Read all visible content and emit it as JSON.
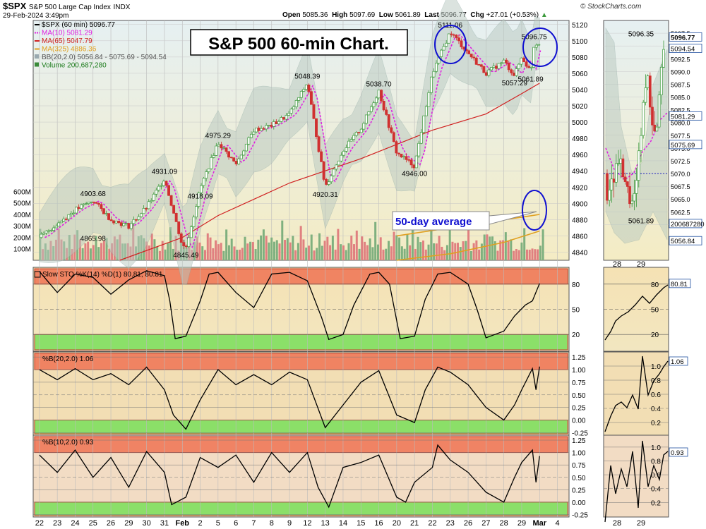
{
  "header": {
    "symbol": "$SPX",
    "name": "S&P 500 Large Cap Index",
    "exchange": "INDX",
    "datetime": "29-Feb-2024 3:49pm",
    "open_label": "Open",
    "open": "5085.36",
    "high_label": "High",
    "high": "5097.69",
    "low_label": "Low",
    "low": "5061.89",
    "last_label": "Last",
    "last": "5096.77",
    "chg_label": "Chg",
    "chg": "+27.01 (+0.53%)",
    "logo": "© StockCharts.com"
  },
  "colors": {
    "up": "#3c9a3c",
    "down": "#d03030",
    "ma10": "#e020e0",
    "ma65": "#d02020",
    "ma325": "#e0a020",
    "bb": "#8aa6a0",
    "vol_up": "#7fb07f",
    "vol_down": "#e08080",
    "overbought": "#f07a5a",
    "oversold": "#80e060",
    "annotation": "#1010d0"
  },
  "annotation": {
    "title": "S&P 500 60-min Chart.",
    "avg_label": "50-day average"
  },
  "chart_data": [
    {
      "type": "candlestick",
      "panel": "price",
      "legend": [
        "$SPX (60 min) 5096.77",
        "MA(10) 5081.29",
        "MA(65) 5047.79",
        "MA(325) 4886.36",
        "BB(20,2.0) 5056.84 - 5075.69 - 5094.54",
        "Volume 200,687,280"
      ],
      "x_labels": [
        "22",
        "23",
        "24",
        "25",
        "26",
        "29",
        "30",
        "31",
        "Feb",
        "2",
        "5",
        "6",
        "7",
        "8",
        "9",
        "12",
        "13",
        "14",
        "15",
        "16",
        "20",
        "21",
        "22",
        "23",
        "26",
        "27",
        "28",
        "29",
        "Mar",
        "4"
      ],
      "ylim": [
        4830,
        5125
      ],
      "y_ticks": [
        4840,
        4860,
        4880,
        4900,
        4920,
        4940,
        4960,
        4980,
        5000,
        5020,
        5040,
        5060,
        5080,
        5100,
        5120
      ],
      "close_path": [
        [
          0,
          4858
        ],
        [
          2,
          4892
        ],
        [
          3,
          4903.68
        ],
        [
          4,
          4880
        ],
        [
          5,
          4872
        ],
        [
          6,
          4895
        ],
        [
          7,
          4931.09
        ],
        [
          8,
          4848
        ],
        [
          8.2,
          4845.49
        ],
        [
          9,
          4918.09
        ],
        [
          10,
          4975.29
        ],
        [
          11,
          4948
        ],
        [
          12,
          4990
        ],
        [
          13,
          4996
        ],
        [
          14,
          5010
        ],
        [
          15,
          5048.39
        ],
        [
          16,
          4920.31
        ],
        [
          17,
          4965
        ],
        [
          18,
          4992
        ],
        [
          19,
          5038.7
        ],
        [
          20,
          4962
        ],
        [
          21,
          4946.0
        ],
        [
          22,
          5060
        ],
        [
          23,
          5111.06
        ],
        [
          24,
          5085
        ],
        [
          25,
          5060
        ],
        [
          26,
          5075
        ],
        [
          26.6,
          5057.29
        ],
        [
          27,
          5080
        ],
        [
          27.5,
          5061.89
        ],
        [
          27.7,
          5096.75
        ],
        [
          28,
          5096.77
        ]
      ],
      "price_labels": [
        {
          "x": 3,
          "y": 4903.68,
          "text": "4903.68"
        },
        {
          "x": 3,
          "y": 4865.98,
          "text": "4865.98"
        },
        {
          "x": 7,
          "y": 4931.09,
          "text": "4931.09"
        },
        {
          "x": 8.2,
          "y": 4845.49,
          "text": "4845.49"
        },
        {
          "x": 9,
          "y": 4918.09,
          "text": "4918.09"
        },
        {
          "x": 10,
          "y": 4975.29,
          "text": "4975.29"
        },
        {
          "x": 15,
          "y": 5048.39,
          "text": "5048.39"
        },
        {
          "x": 16,
          "y": 4920.31,
          "text": "4920.31"
        },
        {
          "x": 19,
          "y": 5038.7,
          "text": "5038.70"
        },
        {
          "x": 21,
          "y": 4946.0,
          "text": "4946.00"
        },
        {
          "x": 23,
          "y": 5111.06,
          "text": "5111.06"
        },
        {
          "x": 26.6,
          "y": 5057.29,
          "text": "5057.29"
        },
        {
          "x": 27.5,
          "y": 5061.89,
          "text": "5061.89"
        },
        {
          "x": 27.7,
          "y": 5096.75,
          "text": "5096.75"
        }
      ],
      "ma65_path": [
        [
          4.5,
          4830
        ],
        [
          8,
          4858
        ],
        [
          10,
          4885
        ],
        [
          14,
          4925
        ],
        [
          18,
          4955
        ],
        [
          22,
          4990
        ],
        [
          25,
          5010
        ],
        [
          27,
          5035
        ],
        [
          28,
          5047.79
        ]
      ],
      "ma325_path": [
        [
          20,
          4860
        ],
        [
          23,
          4870
        ],
        [
          25,
          4877
        ],
        [
          27,
          4883
        ],
        [
          28,
          4886.36
        ]
      ],
      "volume_axis": {
        "labels": [
          "100M",
          "200M",
          "300M",
          "400M",
          "500M",
          "600M"
        ],
        "max": 700
      },
      "volume_avg_path": [
        [
          20,
          4830
        ],
        [
          23,
          4838
        ],
        [
          26,
          4852
        ],
        [
          28,
          4866
        ]
      ]
    },
    {
      "type": "line",
      "panel": "slow_sto",
      "legend": "Slow STO %K(14) %D(1) 80.81, 80.81",
      "ylim": [
        0,
        100
      ],
      "y_ticks": [
        20,
        50,
        80
      ],
      "overbought": 80,
      "oversold": 20,
      "last": 80.81,
      "path": [
        [
          0,
          95
        ],
        [
          1,
          70
        ],
        [
          2,
          92
        ],
        [
          3,
          88
        ],
        [
          4,
          68
        ],
        [
          5,
          85
        ],
        [
          6,
          96
        ],
        [
          7,
          90
        ],
        [
          7.3,
          60
        ],
        [
          7.6,
          15
        ],
        [
          8.2,
          18
        ],
        [
          9,
          60
        ],
        [
          9.5,
          92
        ],
        [
          10,
          94
        ],
        [
          11,
          70
        ],
        [
          12,
          52
        ],
        [
          13,
          92
        ],
        [
          14,
          94
        ],
        [
          15,
          84
        ],
        [
          15.8,
          40
        ],
        [
          16.2,
          14
        ],
        [
          17,
          20
        ],
        [
          17.6,
          55
        ],
        [
          18.5,
          92
        ],
        [
          19,
          94
        ],
        [
          19.6,
          80
        ],
        [
          20.2,
          15
        ],
        [
          21,
          18
        ],
        [
          21.6,
          62
        ],
        [
          22.3,
          92
        ],
        [
          23,
          94
        ],
        [
          24,
          80
        ],
        [
          24.5,
          50
        ],
        [
          25,
          16
        ],
        [
          26,
          24
        ],
        [
          26.6,
          42
        ],
        [
          27.2,
          55
        ],
        [
          27.6,
          60
        ],
        [
          28,
          80.81
        ]
      ]
    },
    {
      "type": "line",
      "panel": "pctb20",
      "legend": "%B(20,2.0) 1.06",
      "ylim": [
        -0.3,
        1.35
      ],
      "y_ticks": [
        -0.25,
        0.0,
        0.25,
        0.5,
        0.75,
        1.0,
        1.25
      ],
      "y_tick_labels": [
        "-0.25",
        "0.00",
        "0.25",
        "0.50",
        "0.75",
        "1.00",
        "1.25"
      ],
      "overbought": 1.0,
      "oversold": 0.0,
      "last": 1.06,
      "path": [
        [
          0,
          1.0
        ],
        [
          1,
          0.8
        ],
        [
          2,
          1.02
        ],
        [
          3,
          0.8
        ],
        [
          4,
          0.92
        ],
        [
          5,
          0.7
        ],
        [
          6,
          1.05
        ],
        [
          7,
          0.6
        ],
        [
          7.5,
          0.1
        ],
        [
          8.2,
          -0.18
        ],
        [
          9,
          0.4
        ],
        [
          10,
          1.0
        ],
        [
          11,
          0.7
        ],
        [
          12,
          0.9
        ],
        [
          13,
          0.7
        ],
        [
          14,
          0.95
        ],
        [
          15,
          0.8
        ],
        [
          16,
          -0.15
        ],
        [
          17,
          0.3
        ],
        [
          18,
          0.75
        ],
        [
          19,
          0.98
        ],
        [
          20,
          0.1
        ],
        [
          21,
          -0.05
        ],
        [
          21.6,
          0.6
        ],
        [
          22.3,
          1.05
        ],
        [
          23,
          0.95
        ],
        [
          24,
          0.7
        ],
        [
          25,
          0.25
        ],
        [
          26,
          0.0
        ],
        [
          26.6,
          0.3
        ],
        [
          27,
          0.6
        ],
        [
          27.6,
          1.02
        ],
        [
          27.8,
          0.6
        ],
        [
          28,
          1.06
        ]
      ]
    },
    {
      "type": "line",
      "panel": "pctb10",
      "legend": "%B(10,2.0) 0.93",
      "ylim": [
        -0.3,
        1.35
      ],
      "y_ticks": [
        -0.25,
        0.0,
        0.25,
        0.5,
        0.75,
        1.0,
        1.25
      ],
      "y_tick_labels": [
        "-0.25",
        "0.00",
        "0.25",
        "0.50",
        "0.75",
        "1.00",
        "1.25"
      ],
      "overbought": 1.0,
      "oversold": 0.0,
      "last": 0.93,
      "path": [
        [
          0,
          0.95
        ],
        [
          1,
          0.6
        ],
        [
          2,
          1.05
        ],
        [
          3,
          0.5
        ],
        [
          4,
          0.9
        ],
        [
          5,
          0.3
        ],
        [
          6,
          1.02
        ],
        [
          7,
          0.6
        ],
        [
          7.4,
          -0.05
        ],
        [
          8.2,
          0.1
        ],
        [
          9,
          0.9
        ],
        [
          10,
          0.7
        ],
        [
          11,
          0.95
        ],
        [
          12,
          0.4
        ],
        [
          13,
          1.0
        ],
        [
          14,
          0.6
        ],
        [
          15,
          1.0
        ],
        [
          15.6,
          0.3
        ],
        [
          16.2,
          -0.1
        ],
        [
          17,
          0.7
        ],
        [
          18,
          0.8
        ],
        [
          19,
          0.95
        ],
        [
          20,
          0.1
        ],
        [
          20.5,
          0.0
        ],
        [
          21,
          0.4
        ],
        [
          22,
          0.7
        ],
        [
          22.3,
          1.15
        ],
        [
          23,
          0.85
        ],
        [
          24,
          0.6
        ],
        [
          25,
          0.2
        ],
        [
          26,
          0.0
        ],
        [
          26.6,
          0.5
        ],
        [
          27,
          0.8
        ],
        [
          27.6,
          1.05
        ],
        [
          27.8,
          0.4
        ],
        [
          28,
          0.93
        ]
      ]
    },
    {
      "type": "candlestick",
      "panel": "zoom_price",
      "x_labels": [
        "28",
        "29"
      ],
      "ylim": [
        5053,
        5100
      ],
      "y_ticks": [
        5060.0,
        5062.5,
        5065.0,
        5067.5,
        5070.0,
        5072.5,
        5075.0,
        5077.5,
        5080.0,
        5082.5,
        5085.0,
        5087.5,
        5090.0,
        5092.5,
        5095.0,
        5097.5
      ],
      "y_tick_labels": [
        "5060.0",
        "5062.5",
        "5065.0",
        "5067.5",
        "5070.0",
        "5072.5",
        "5075.0",
        "5077.5",
        "5080.0",
        "5082.5",
        "5085.0",
        "5087.5",
        "5090.0",
        "5092.5",
        "5095.0",
        "5097.5"
      ],
      "badges": [
        {
          "y": 5096.77,
          "text": "5096.77"
        },
        {
          "y": 5094.54,
          "text": "5094.54"
        },
        {
          "y": 5081.29,
          "text": "5081.29"
        },
        {
          "y": 5075.69,
          "text": "5075.69"
        },
        {
          "y": 5060.2,
          "text": "200687280"
        },
        {
          "y": 5056.84,
          "text": "5056.84"
        }
      ],
      "labels": [
        {
          "y": 5096.35,
          "text": "5096.35"
        },
        {
          "y": 5061.89,
          "text": "5061.89"
        }
      ]
    },
    {
      "type": "line",
      "panel": "zoom_sto",
      "y_ticks": [
        20,
        50,
        80
      ],
      "badge": "80.81"
    },
    {
      "type": "line",
      "panel": "zoom_pctb20",
      "y_ticks": [
        0.2,
        0.4,
        0.6,
        0.8,
        1.0
      ],
      "y_tick_labels": [
        "0.2",
        "0.4",
        "0.6",
        "0.8",
        "1.0"
      ],
      "badge": "1.06"
    },
    {
      "type": "line",
      "panel": "zoom_pctb10",
      "y_ticks": [
        0.2,
        0.4,
        0.6,
        0.8,
        1.0
      ],
      "y_tick_labels": [
        "0.2",
        "0.4",
        "0.6",
        "0.8",
        "1.0"
      ],
      "badge": "0.93"
    }
  ]
}
